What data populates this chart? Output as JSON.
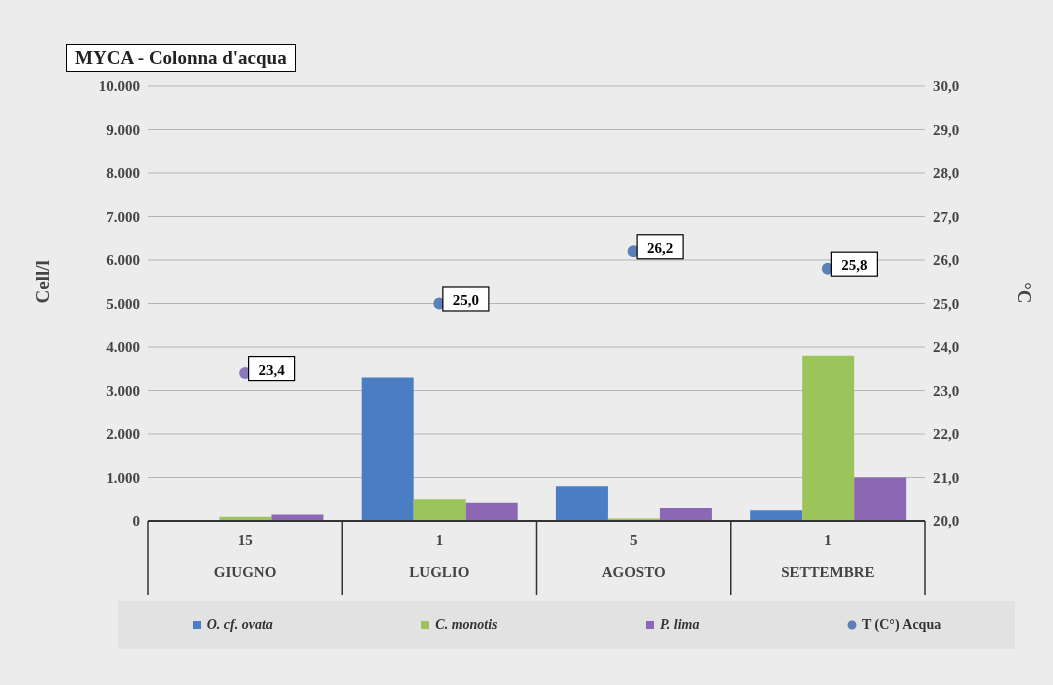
{
  "chart_data": {
    "type": "bar",
    "title": "MYCA - Colonna d'acqua",
    "ylabel": "Cell/l",
    "y2label": "°C",
    "categories": [
      "15\nGIUGNO",
      "1\nLUGLIO",
      "5\nAGOSTO",
      "1\nSETTEMBRE"
    ],
    "series": [
      {
        "name": "O. cf. ovata",
        "color": "#4a7dc4",
        "values": [
          0,
          3300,
          800,
          250
        ]
      },
      {
        "name": "C. monotis",
        "color": "#9bc55a",
        "values": [
          100,
          500,
          60,
          3800
        ]
      },
      {
        "name": "P. lima",
        "color": "#8c67b4",
        "values": [
          150,
          420,
          300,
          1000
        ]
      },
      {
        "name": "T (C°) Acqua",
        "type": "scatter",
        "axis": "y2",
        "color": "#5b80b8",
        "colors": [
          "#8a78bc",
          "#5b80b8",
          "#5b80b8",
          "#5b80b8"
        ],
        "values": [
          23.4,
          25.0,
          26.2,
          25.8
        ],
        "value_labels": [
          "23,4",
          "25,0",
          "26,2",
          "25,8"
        ]
      }
    ],
    "ylim": [
      0,
      10000
    ],
    "yticks": [
      {
        "value": 0,
        "label": "0"
      },
      {
        "value": 1000,
        "label": "1.000"
      },
      {
        "value": 2000,
        "label": "2.000"
      },
      {
        "value": 3000,
        "label": "3.000"
      },
      {
        "value": 4000,
        "label": "4.000"
      },
      {
        "value": 5000,
        "label": "5.000"
      },
      {
        "value": 6000,
        "label": "6.000"
      },
      {
        "value": 7000,
        "label": "7.000"
      },
      {
        "value": 8000,
        "label": "8.000"
      },
      {
        "value": 9000,
        "label": "9.000"
      },
      {
        "value": 10000,
        "label": "10.000"
      }
    ],
    "y2lim": [
      20,
      30
    ],
    "y2ticks": [
      {
        "value": 20,
        "label": "20,0"
      },
      {
        "value": 21,
        "label": "21,0"
      },
      {
        "value": 22,
        "label": "22,0"
      },
      {
        "value": 23,
        "label": "23,0"
      },
      {
        "value": 24,
        "label": "24,0"
      },
      {
        "value": 25,
        "label": "25,0"
      },
      {
        "value": 26,
        "label": "26,0"
      },
      {
        "value": 27,
        "label": "27,0"
      },
      {
        "value": 28,
        "label": "28,0"
      },
      {
        "value": 29,
        "label": "29,0"
      },
      {
        "value": 30,
        "label": "30,0"
      }
    ],
    "grid": "y",
    "legend": "bottom",
    "marker": "circle"
  }
}
